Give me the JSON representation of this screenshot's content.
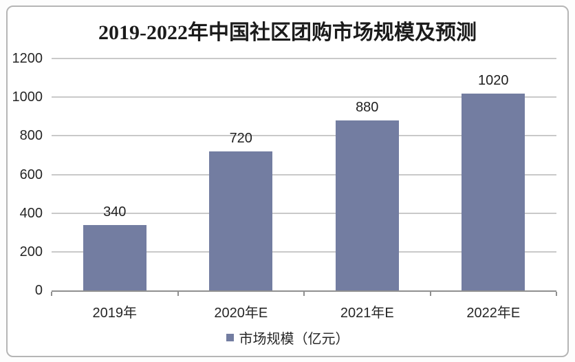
{
  "chart_data": {
    "type": "bar",
    "title": "2019-2022年中国社区团购市场规模及预测",
    "categories": [
      "2019年",
      "2020年E",
      "2021年E",
      "2022年E"
    ],
    "values": [
      340,
      720,
      880,
      1020
    ],
    "ylim": [
      0,
      1200
    ],
    "yticks": [
      0,
      200,
      400,
      600,
      800,
      1000,
      1200
    ],
    "grid": true,
    "legend_position": "bottom",
    "legend_label": "市场规模（亿元）",
    "colors": {
      "bar": "#737DA1",
      "gridline": "#C9C9C9",
      "axis": "#8F8F8F",
      "text": "#262626",
      "frame_border": "#B5B5B5",
      "background": "#FFFFFF"
    }
  }
}
